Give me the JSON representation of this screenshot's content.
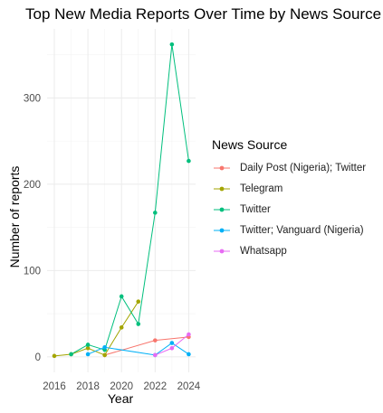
{
  "chart_data": {
    "type": "line",
    "title": "Top New Media Reports Over Time by News Source",
    "xlabel": "Year",
    "ylabel": "Number of reports",
    "xlim": [
      2016,
      2024
    ],
    "ylim": [
      0,
      370
    ],
    "xticks": [
      2016,
      2018,
      2020,
      2022,
      2024
    ],
    "yticks": [
      0,
      100,
      200,
      300
    ],
    "legend_title": "News Source",
    "legend_position": "right",
    "grid": true,
    "series": [
      {
        "name": "Daily Post (Nigeria); Twitter",
        "color": "#F8766D",
        "x": [
          2019,
          2022,
          2024
        ],
        "y": [
          2,
          19,
          23
        ]
      },
      {
        "name": "Telegram",
        "color": "#A3A500",
        "x": [
          2016,
          2017,
          2018,
          2019,
          2020,
          2021
        ],
        "y": [
          1,
          3,
          10,
          2,
          34,
          64
        ]
      },
      {
        "name": "Twitter",
        "color": "#00BF7D",
        "x": [
          2017,
          2018,
          2019,
          2020,
          2021,
          2022,
          2023,
          2024
        ],
        "y": [
          3,
          14,
          8,
          70,
          38,
          167,
          362,
          227
        ]
      },
      {
        "name": "Twitter; Vanguard (Nigeria)",
        "color": "#00B0F6",
        "x": [
          2018,
          2019,
          2022,
          2023,
          2024
        ],
        "y": [
          3,
          11,
          2,
          16,
          3
        ]
      },
      {
        "name": "Whatsapp",
        "color": "#E76BF3",
        "x": [
          2022,
          2023,
          2024
        ],
        "y": [
          2,
          10,
          26
        ]
      }
    ]
  }
}
